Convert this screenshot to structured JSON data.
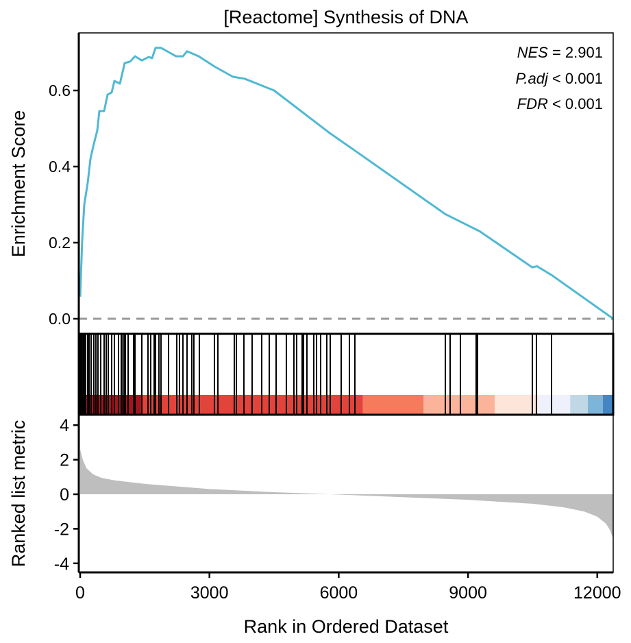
{
  "chart_data": {
    "type": "line",
    "title": "[Reactome] Synthesis of DNA",
    "stats": {
      "nes_label": "NES",
      "nes_value": " = 2.901",
      "padj_label": "P.adj",
      "padj_value": " < 0.001",
      "fdr_label": "FDR",
      "fdr_value": " < 0.001"
    },
    "xlabel": "Rank in Ordered Dataset",
    "ylabel_top": "Enrichment Score",
    "ylabel_bottom": "Ranked list metric",
    "xlim": [
      0,
      12370
    ],
    "x_ticks": [
      "0",
      "3000",
      "6000",
      "9000",
      "12000"
    ],
    "x_tick_values": [
      0,
      3000,
      6000,
      9000,
      12000
    ],
    "es_ylim": [
      -0.04,
      0.75
    ],
    "es_ticks": [
      "0.0",
      "0.2",
      "0.4",
      "0.6"
    ],
    "es_tick_values": [
      0,
      0.2,
      0.4,
      0.6
    ],
    "metric_ylim": [
      -4.4,
      4.6
    ],
    "metric_ticks": [
      "4",
      "2",
      "0",
      "-2",
      "-4"
    ],
    "metric_tick_values": [
      4,
      2,
      0,
      -2,
      -4
    ],
    "es_curve": {
      "rank": [
        0,
        48,
        95,
        175,
        238,
        318,
        397,
        445,
        556,
        636,
        731,
        795,
        922,
        1033,
        1160,
        1272,
        1431,
        1590,
        1669,
        1749,
        1876,
        2067,
        2226,
        2385,
        2480,
        2750,
        3116,
        3545,
        3815,
        4500,
        5770,
        6400,
        8474,
        8600,
        9270,
        10493,
        10600,
        10938,
        12370
      ],
      "es": [
        0.058,
        0.207,
        0.3,
        0.357,
        0.42,
        0.46,
        0.495,
        0.546,
        0.546,
        0.589,
        0.595,
        0.625,
        0.618,
        0.672,
        0.676,
        0.69,
        0.679,
        0.688,
        0.685,
        0.712,
        0.712,
        0.7,
        0.69,
        0.69,
        0.703,
        0.69,
        0.663,
        0.636,
        0.631,
        0.6,
        0.49,
        0.44,
        0.275,
        0.268,
        0.23,
        0.135,
        0.138,
        0.115,
        0.0
      ]
    },
    "hit_ranks": [
      0,
      32,
      64,
      95,
      127,
      175,
      207,
      254,
      318,
      366,
      413,
      477,
      556,
      604,
      652,
      731,
      795,
      890,
      954,
      970,
      1017,
      1049,
      1113,
      1240,
      1272,
      1431,
      1574,
      1637,
      1717,
      1749,
      1828,
      1876,
      2051,
      2242,
      2305,
      2385,
      2480,
      2591,
      2639,
      2766,
      3116,
      3196,
      3577,
      3625,
      3800,
      3990,
      4213,
      4388,
      4547,
      4785,
      4960,
      5024,
      5151,
      5183,
      5262,
      5421,
      5485,
      5580,
      5723,
      5803,
      6057,
      6248,
      6375,
      8474,
      8585,
      8824,
      9189,
      9221,
      10493,
      10588,
      10938
    ],
    "metric_curve": {
      "rank": [
        0,
        60,
        150,
        300,
        500,
        800,
        1500,
        3000,
        4500,
        5800,
        7000,
        9000,
        10500,
        11200,
        11700,
        12000,
        12200,
        12300,
        12370
      ],
      "value": [
        2.6,
        2.0,
        1.5,
        1.15,
        0.95,
        0.8,
        0.6,
        0.3,
        0.12,
        0.0,
        -0.12,
        -0.32,
        -0.55,
        -0.75,
        -1.0,
        -1.3,
        -1.7,
        -2.1,
        -2.6
      ]
    },
    "color_band": [
      {
        "from": 0,
        "to": 1430,
        "color": "#a5141e"
      },
      {
        "from": 1430,
        "to": 6560,
        "color": "#e0443b"
      },
      {
        "from": 6560,
        "to": 7970,
        "color": "#f67a5c"
      },
      {
        "from": 7970,
        "to": 9620,
        "color": "#fbb39a"
      },
      {
        "from": 9620,
        "to": 10620,
        "color": "#fde5da"
      },
      {
        "from": 10620,
        "to": 11370,
        "color": "#eef1fb"
      },
      {
        "from": 11370,
        "to": 11780,
        "color": "#c0d8e6"
      },
      {
        "from": 11780,
        "to": 12130,
        "color": "#7db4da"
      },
      {
        "from": 12130,
        "to": 12370,
        "color": "#4287c4"
      }
    ],
    "colors": {
      "curve": "#4fb9d3",
      "zero_line": "#9a9a9a",
      "metric_fill": "#bebebe"
    }
  }
}
